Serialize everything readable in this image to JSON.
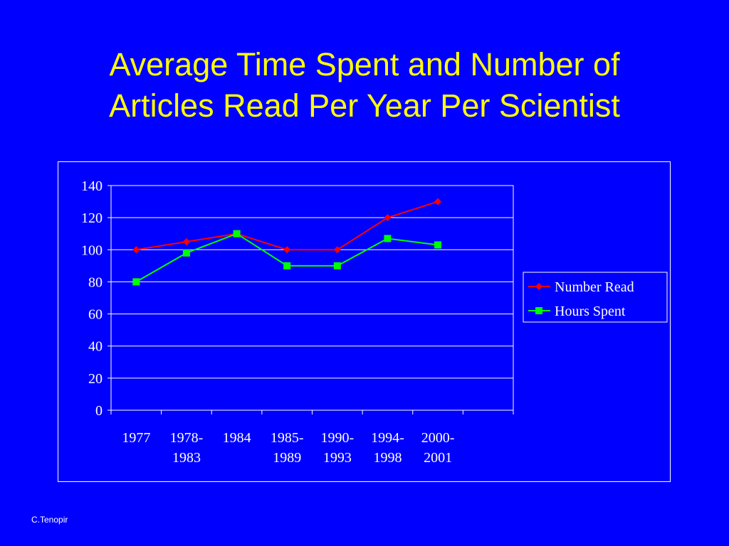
{
  "slide": {
    "title_line1": "Average Time Spent and Number of",
    "title_line2": "Articles Read Per Year Per Scientist",
    "footer": "C.Tenopir"
  },
  "colors": {
    "background": "#0000ff",
    "title": "#ffff00",
    "text": "#ffffff",
    "number_read": "#ff0000",
    "hours_spent": "#00ff00"
  },
  "chart_data": {
    "type": "line",
    "categories": [
      [
        "1977"
      ],
      [
        "1978-",
        "1983"
      ],
      [
        "1984"
      ],
      [
        "1985-",
        "1989"
      ],
      [
        "1990-",
        "1993"
      ],
      [
        "1994-",
        "1998"
      ],
      [
        "2000-",
        "2001"
      ]
    ],
    "series": [
      {
        "name": "Number Read",
        "values": [
          100,
          105,
          110,
          100,
          100,
          120,
          130
        ],
        "color": "#ff0000",
        "marker": "diamond"
      },
      {
        "name": "Hours Spent",
        "values": [
          80,
          98,
          110,
          90,
          90,
          107,
          103
        ],
        "color": "#00ff00",
        "marker": "square"
      }
    ],
    "ylim": [
      0,
      140
    ],
    "yticks": [
      0,
      20,
      40,
      60,
      80,
      100,
      120,
      140
    ],
    "category_slots": 8,
    "grid": true,
    "legend": "right"
  }
}
